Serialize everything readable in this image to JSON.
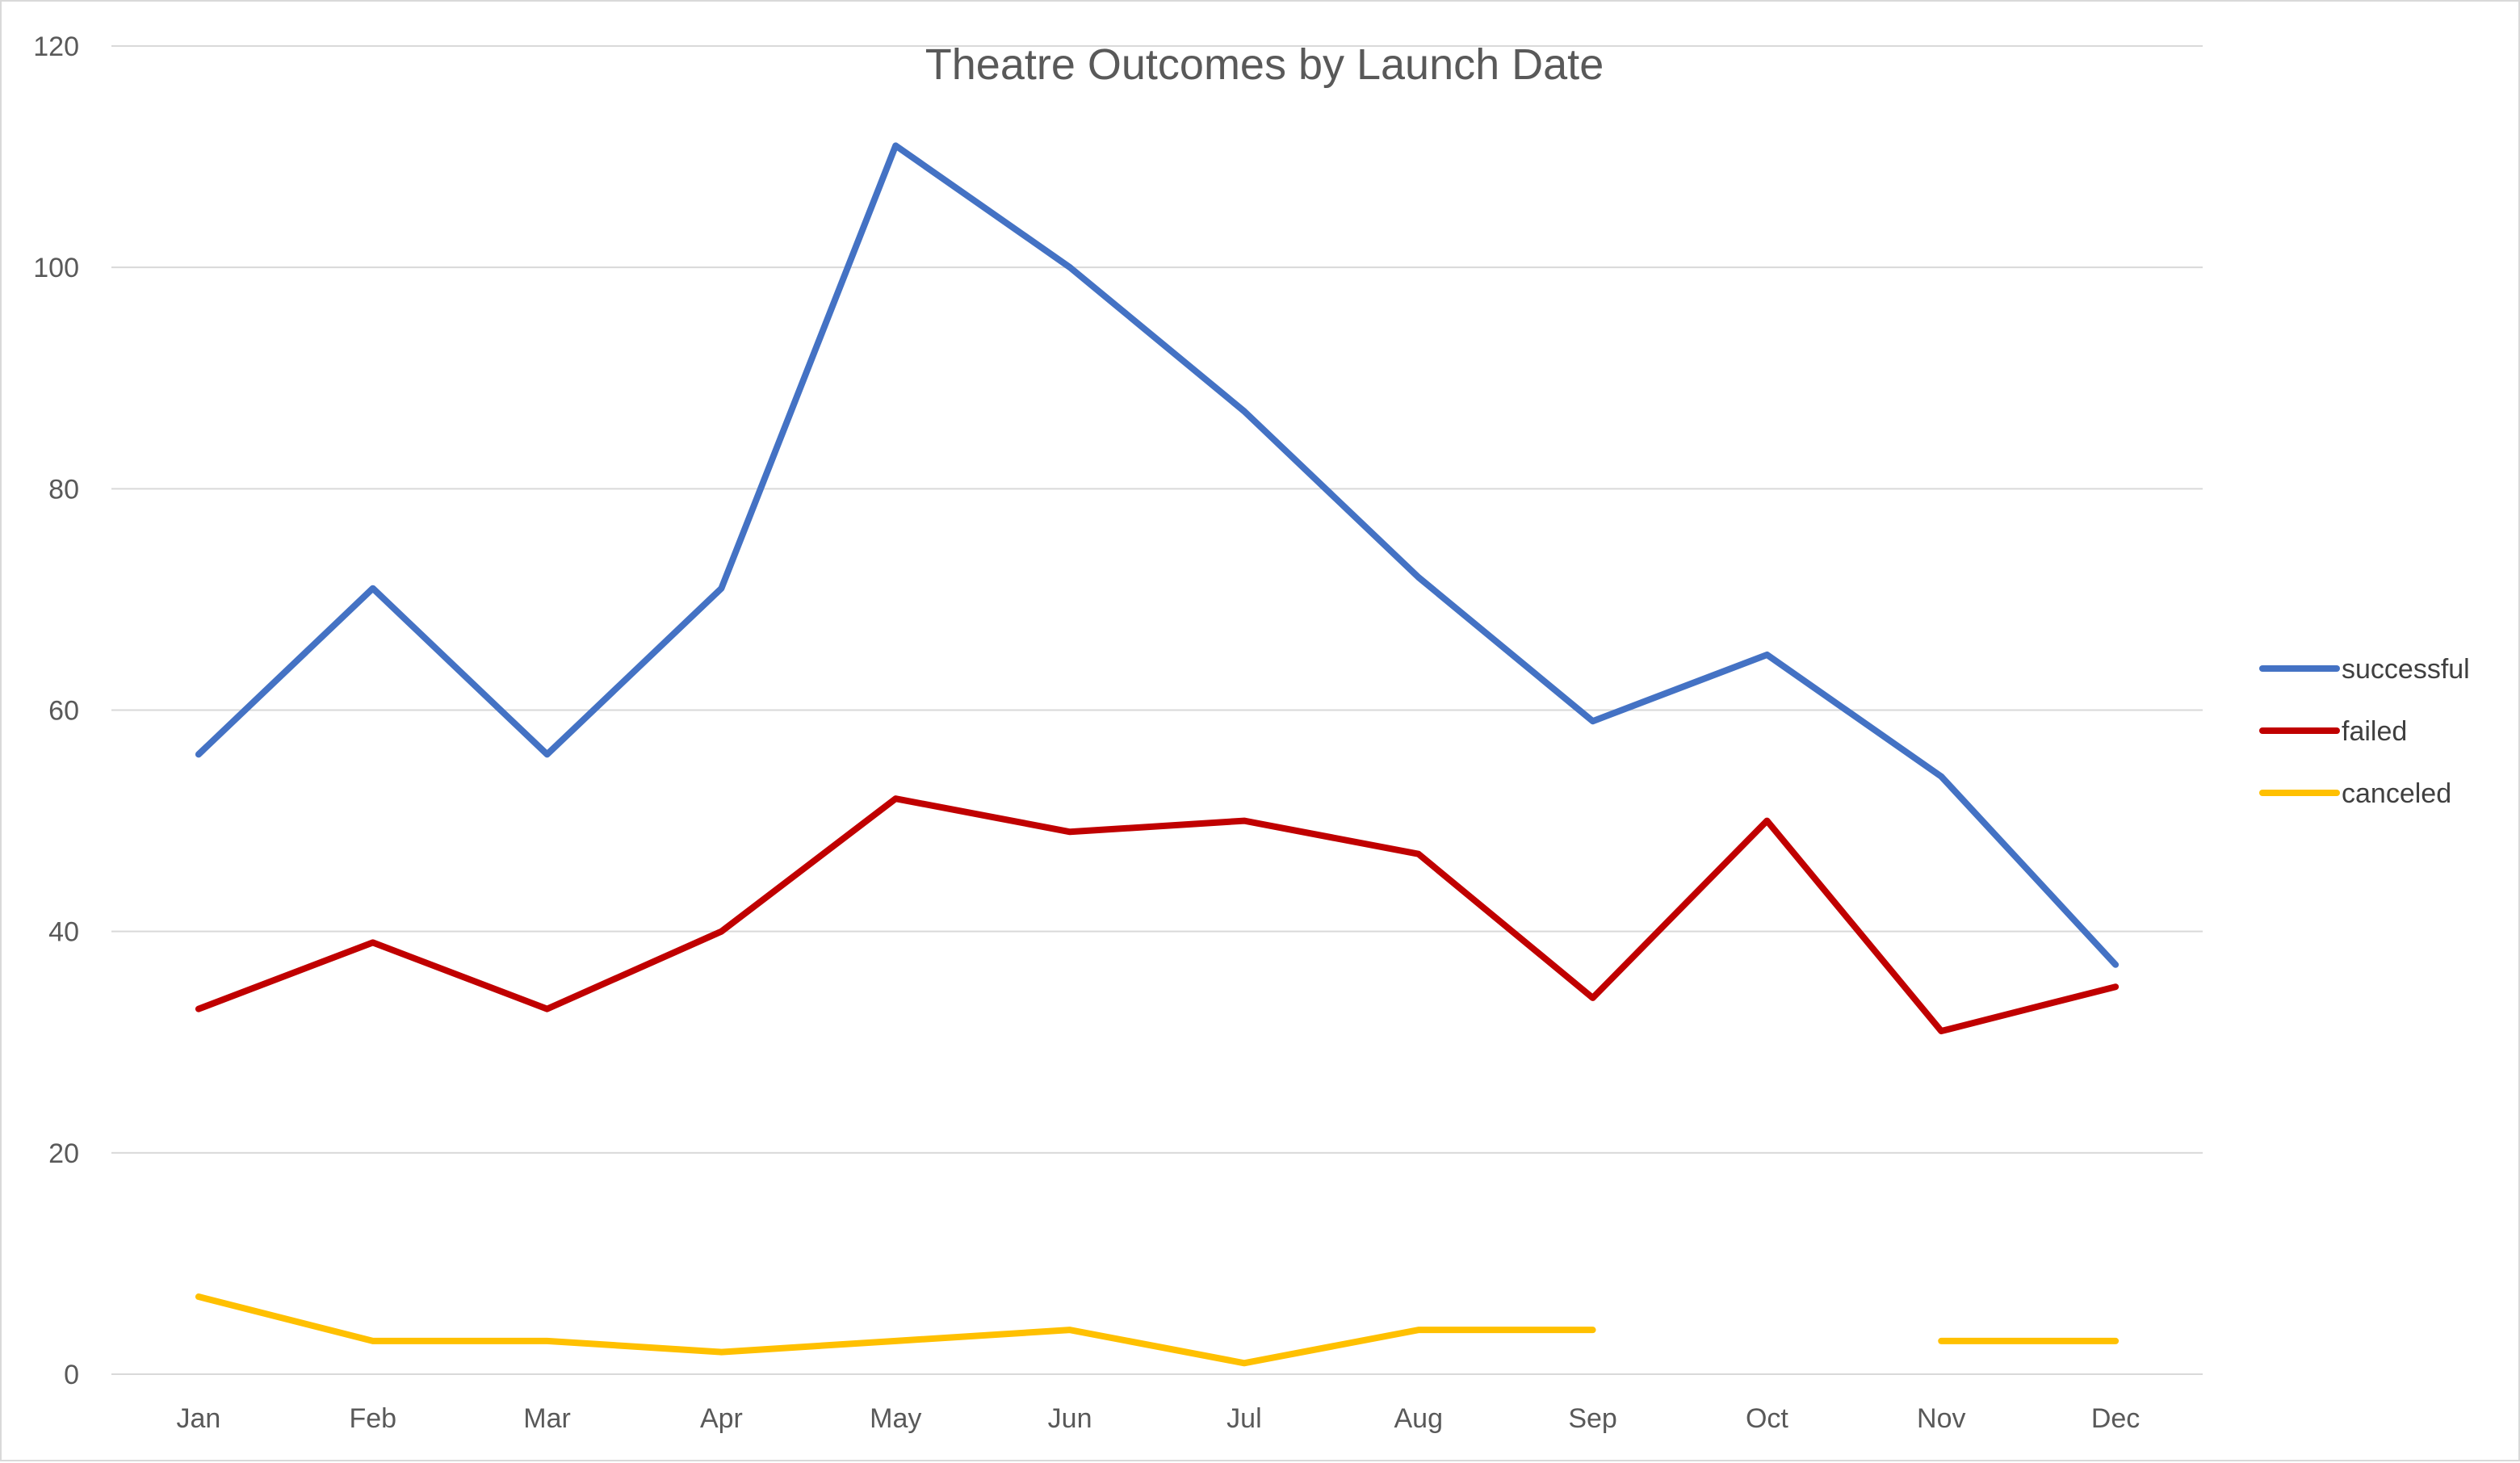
{
  "colors": {
    "successful": "#4472C4",
    "failed": "#C00000",
    "canceled": "#FFC000",
    "gridline": "#d9d9d9",
    "axis_text": "#595959"
  },
  "chart_data": {
    "type": "line",
    "title": "Theatre Outcomes by Launch Date",
    "xlabel": "",
    "ylabel": "",
    "categories": [
      "Jan",
      "Feb",
      "Mar",
      "Apr",
      "May",
      "Jun",
      "Jul",
      "Aug",
      "Sep",
      "Oct",
      "Nov",
      "Dec"
    ],
    "ylim": [
      0,
      120
    ],
    "yticks": [
      0,
      20,
      40,
      60,
      80,
      100,
      120
    ],
    "grid": true,
    "legend_position": "right",
    "series": [
      {
        "name": "successful",
        "color": "#4472C4",
        "values": [
          56,
          71,
          56,
          71,
          111,
          100,
          87,
          72,
          59,
          65,
          54,
          37
        ]
      },
      {
        "name": "failed",
        "color": "#C00000",
        "values": [
          33,
          39,
          33,
          40,
          52,
          49,
          50,
          47,
          34,
          50,
          31,
          35
        ]
      },
      {
        "name": "canceled",
        "color": "#FFC000",
        "values": [
          7,
          3,
          3,
          2,
          3,
          4,
          1,
          4,
          4,
          null,
          3,
          3
        ]
      }
    ]
  }
}
